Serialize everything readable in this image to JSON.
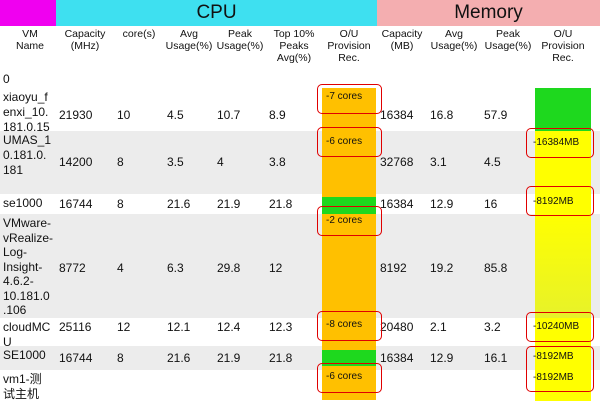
{
  "groups": {
    "cpu": "CPU",
    "memory": "Memory"
  },
  "columns": [
    "VM\nName",
    "Capacity\n(MHz)",
    "core(s)",
    "Avg\nUsage(%)",
    "Peak\nUsage(%)",
    "Top 10%\nPeaks\nAvg(%)",
    "O/U\nProvision\nRec.",
    "Capacity\n(MB)",
    "Avg\nUsage(%)",
    "Peak\nUsage(%)",
    "O/U\nProvision\nRec."
  ],
  "rows": [
    {
      "name": "0",
      "cap": "",
      "cores": "",
      "avg": "",
      "peak": "",
      "top": "",
      "rec": "",
      "mcap": "",
      "mavg": "",
      "mpeak": "",
      "mrec": ""
    },
    {
      "name": "xiaoyu_f\nenxi_10.\n181.0.15",
      "cap": "21930",
      "cores": "10",
      "avg": "4.5",
      "peak": "10.7",
      "top": "8.9",
      "rec": "-7 cores",
      "mcap": "16384",
      "mavg": "16.8",
      "mpeak": "57.9",
      "mrec": ""
    },
    {
      "name": "UMAS_1\n0.181.0.\n181",
      "cap": "14200",
      "cores": "8",
      "avg": "3.5",
      "peak": "4",
      "top": "3.8",
      "rec": "-6 cores",
      "mcap": "32768",
      "mavg": "3.1",
      "mpeak": "4.5",
      "mrec": "-16384MB"
    },
    {
      "name": "se1000",
      "cap": "16744",
      "cores": "8",
      "avg": "21.6",
      "peak": "21.9",
      "top": "21.8",
      "rec": "",
      "mcap": "16384",
      "mavg": "12.9",
      "mpeak": "16",
      "mrec": "-8192MB"
    },
    {
      "name": "VMware-\nvRealize-\nLog-\nInsight-\n4.6.2-\n10.181.0\n.106",
      "cap": "8772",
      "cores": "4",
      "avg": "6.3",
      "peak": "29.8",
      "top": "12",
      "rec": "-2 cores",
      "mcap": "8192",
      "mavg": "19.2",
      "mpeak": "85.8",
      "mrec": ""
    },
    {
      "name": "cloudMC\nU",
      "cap": "25116",
      "cores": "12",
      "avg": "12.1",
      "peak": "12.4",
      "top": "12.3",
      "rec": "-8 cores",
      "mcap": "20480",
      "mavg": "2.1",
      "mpeak": "3.2",
      "mrec": "-10240MB"
    },
    {
      "name": "SE1000",
      "cap": "16744",
      "cores": "8",
      "avg": "21.6",
      "peak": "21.9",
      "top": "21.8",
      "rec": "",
      "mcap": "16384",
      "mavg": "12.9",
      "mpeak": "16.1",
      "mrec": "-8192MB"
    },
    {
      "name": "vm1-测\n试主机",
      "cap": "",
      "cores": "",
      "avg": "",
      "peak": "",
      "top": "",
      "rec": "-6 cores",
      "mcap": "",
      "mavg": "",
      "mpeak": "",
      "mrec": "-8192MB"
    }
  ],
  "colors": {
    "vm_band": "#f000f0",
    "cpu_band": "#3ee0f0",
    "mem_band": "#f4aeb0",
    "row_alt": "#ececec",
    "cpu_rec": "#ffc000",
    "cpu_ok": "#1ed81e",
    "mem_ok": "#1ed81e",
    "mem_rec": "#ffff00",
    "highlight": "#e00000"
  }
}
